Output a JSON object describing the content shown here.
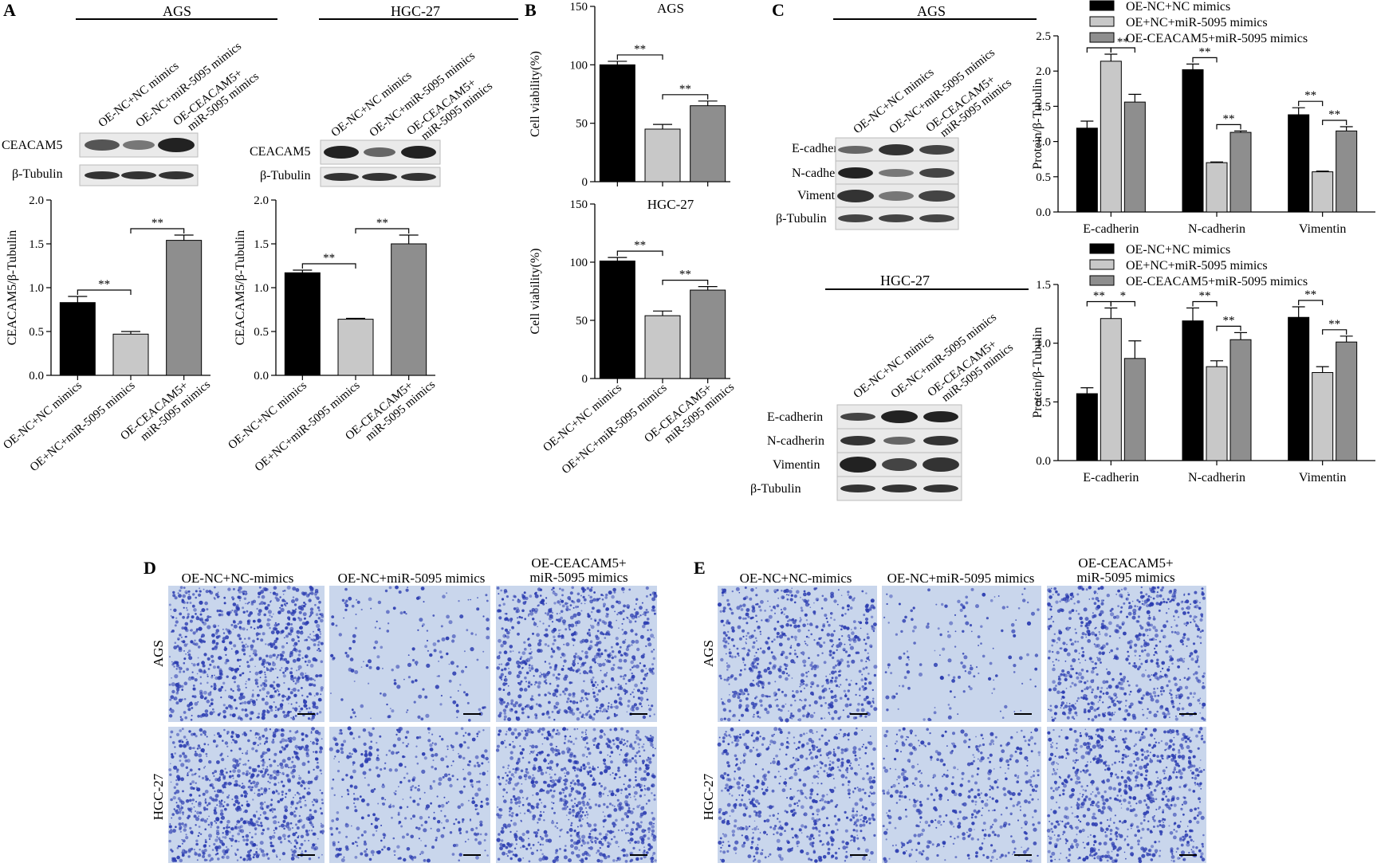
{
  "panel_letters": {
    "A": "A",
    "B": "B",
    "C": "C",
    "D": "D",
    "E": "E"
  },
  "colors": {
    "black": "#000000",
    "light": "#c8c8c8",
    "mid": "#8e8e8e",
    "stain": "#2a3bb0",
    "bg_stain": "#c9d6ec"
  },
  "groups_ab": [
    "OE-NC+NC mimics",
    "OE+NC+miR-5095 mimics",
    "OE-CEACAM5+ miR-5095 mimics"
  ],
  "blot_headers_a": [
    "OE-NC+NC mimics",
    "OE-NC+miR-5095 mimics",
    "OE-CEACAM5+ miR-5095 mimics"
  ],
  "blot_headers_c": [
    "OE-NC+NC mimics",
    "OE-NC+miR-5095 mimics",
    "OE-CEACAM5+ miR-5095 mimics"
  ],
  "blot_headers_c2": [
    "OE-NC+NC mimics",
    "OE-NC+miR-5095 mimics",
    "OE-CEACAM5+ miR-5095 mimics"
  ],
  "blot_rows_a": [
    "CEACAM5",
    "β-Tubulin"
  ],
  "blot_rows_c": [
    "E-cadherin",
    "N-cadherin",
    "Vimentin",
    "β-Tubulin"
  ],
  "cell_lines": {
    "ags": "AGS",
    "hgc": "HGC-27"
  },
  "sig": {
    "dd": "**",
    "d": "*"
  },
  "micro": {
    "d_cols": [
      "OE-NC+NC-mimics",
      "OE-NC+miR-5095 mimics",
      "OE-CEACAM5+ miR-5095 mimics"
    ],
    "e_cols": [
      "OE-NC+NC-mimics",
      "OE-NC+miR-5095 mimics",
      "OE-CEACAM5+ miR-5095 mimics"
    ],
    "rows": [
      "AGS",
      "HGC-27"
    ]
  },
  "chart_data": [
    {
      "id": "A_AGS",
      "type": "bar",
      "title": "",
      "ylabel": "CEACAM5/β-Tubulin",
      "ylim": [
        0,
        2.0
      ],
      "ticks": [
        "0.0",
        "0.5",
        "1.0",
        "1.5",
        "2.0"
      ],
      "categories": [
        "OE-NC+NC mimics",
        "OE+NC+miR-5095 mimics",
        "OE-CEACAM5+ miR-5095 mimics"
      ],
      "values": [
        0.83,
        0.47,
        1.54
      ],
      "errors": [
        0.07,
        0.03,
        0.06
      ]
    },
    {
      "id": "A_HGC",
      "type": "bar",
      "title": "",
      "ylabel": "CEACAM5/β-Tubulin",
      "ylim": [
        0,
        2.0
      ],
      "ticks": [
        "0.0",
        "0.5",
        "1.0",
        "1.5",
        "2.0"
      ],
      "categories": [
        "OE-NC+NC mimics",
        "OE+NC+miR-5095 mimics",
        "OE-CEACAM5+ miR-5095 mimics"
      ],
      "values": [
        1.17,
        0.64,
        1.5
      ],
      "errors": [
        0.03,
        0.01,
        0.1
      ]
    },
    {
      "id": "B_AGS",
      "type": "bar",
      "title": "AGS",
      "ylabel": "Cell viability(%)",
      "ylim": [
        0,
        150
      ],
      "ticks": [
        "0",
        "50",
        "100",
        "150"
      ],
      "categories": [
        "OE-NC+NC mimics",
        "OE+NC+miR-5095 mimics",
        "OE-CEACAM5+ miR-5095 mimics"
      ],
      "values": [
        100,
        45,
        65
      ],
      "errors": [
        3,
        4,
        4
      ]
    },
    {
      "id": "B_HGC",
      "type": "bar",
      "title": "HGC-27",
      "ylabel": "Cell viability(%)",
      "ylim": [
        0,
        150
      ],
      "ticks": [
        "0",
        "50",
        "100",
        "150"
      ],
      "categories": [
        "OE-NC+NC mimics",
        "OE+NC+miR-5095 mimics",
        "OE-CEACAM5+ miR-5095 mimics"
      ],
      "values": [
        101,
        54,
        76
      ],
      "errors": [
        3,
        4,
        3
      ]
    },
    {
      "id": "C_AGS",
      "type": "bar",
      "title": "",
      "ylabel": "Protein/β-Tubulin",
      "ylim": [
        0,
        2.5
      ],
      "ticks": [
        "0.0",
        "0.5",
        "1.0",
        "1.5",
        "2.0",
        "2.5"
      ],
      "categories": [
        "E-cadherin",
        "N-cadherin",
        "Vimentin"
      ],
      "legend": [
        "OE-NC+NC mimics",
        "OE+NC+miR-5095 mimics",
        "OE-CEACAM5+miR-5095 mimics"
      ],
      "series": [
        {
          "name": "OE-NC+NC mimics",
          "values": [
            1.19,
            2.02,
            1.38
          ],
          "errors": [
            0.1,
            0.08,
            0.1
          ]
        },
        {
          "name": "OE+NC+miR-5095 mimics",
          "values": [
            2.14,
            0.7,
            0.57
          ],
          "errors": [
            0.1,
            0.01,
            0.01
          ]
        },
        {
          "name": "OE-CEACAM5+miR-5095 mimics",
          "values": [
            1.56,
            1.13,
            1.15
          ],
          "errors": [
            0.11,
            0.02,
            0.06
          ]
        }
      ]
    },
    {
      "id": "C_HGC",
      "type": "bar",
      "title": "",
      "ylabel": "Protein/β-Tubulin",
      "ylim": [
        0,
        1.5
      ],
      "ticks": [
        "0.0",
        "0.5",
        "1.0",
        "1.5"
      ],
      "categories": [
        "E-cadherin",
        "N-cadherin",
        "Vimentin"
      ],
      "legend": [
        "OE-NC+NC mimics",
        "OE+NC+miR-5095 mimics",
        "OE-CEACAM5+miR-5095 mimics"
      ],
      "series": [
        {
          "name": "OE-NC+NC mimics",
          "values": [
            0.57,
            1.19,
            1.22
          ],
          "errors": [
            0.05,
            0.11,
            0.09
          ]
        },
        {
          "name": "OE+NC+miR-5095 mimics",
          "values": [
            1.21,
            0.8,
            0.75
          ],
          "errors": [
            0.09,
            0.05,
            0.05
          ]
        },
        {
          "name": "OE-CEACAM5+miR-5095 mimics",
          "values": [
            0.87,
            1.03,
            1.01
          ],
          "errors": [
            0.15,
            0.06,
            0.05
          ]
        }
      ]
    }
  ]
}
